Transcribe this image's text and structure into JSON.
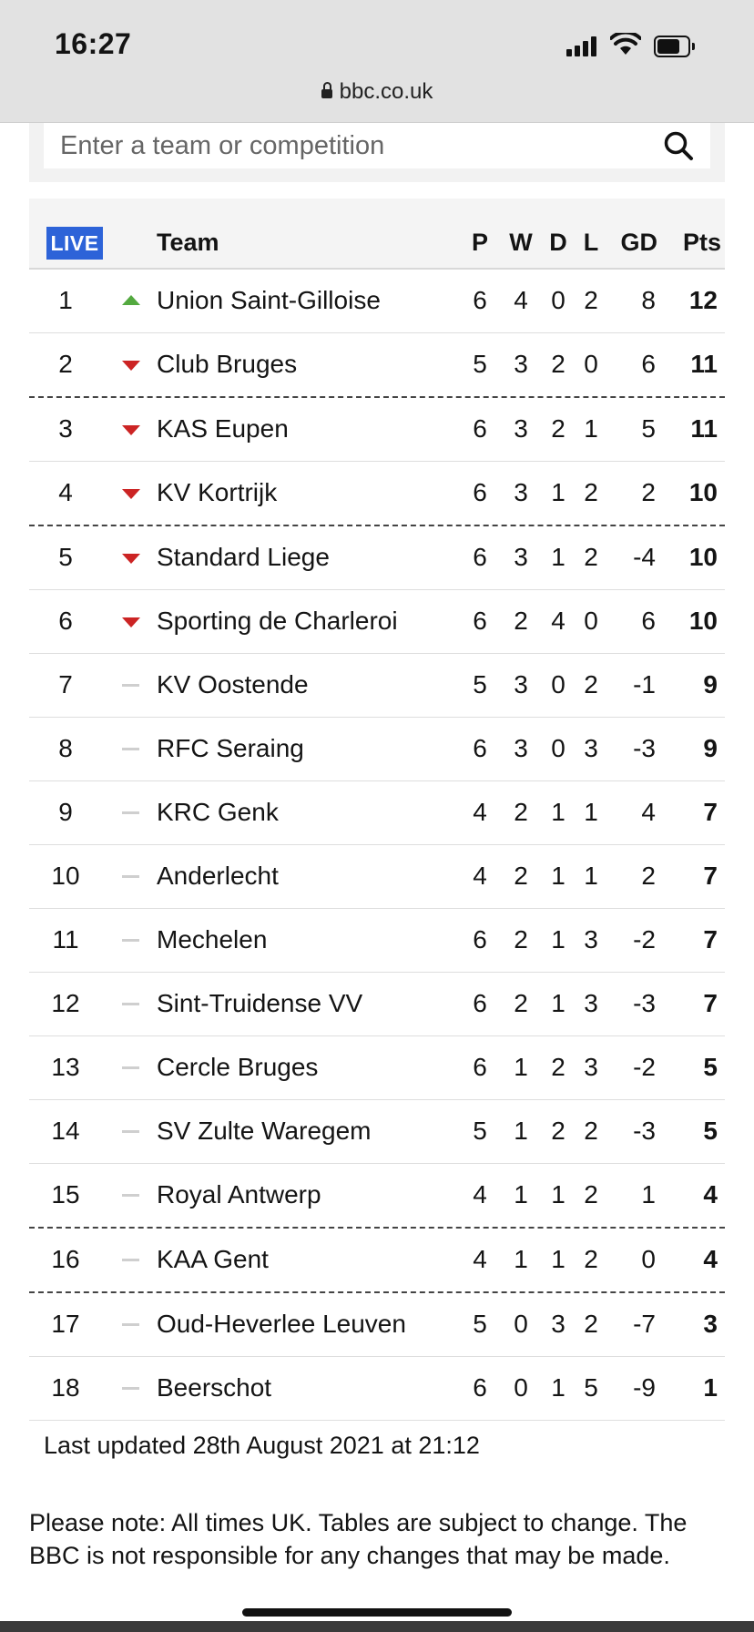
{
  "status_bar": {
    "time": "16:27"
  },
  "browser": {
    "url": "bbc.co.uk"
  },
  "search": {
    "placeholder": "Enter a team or competition"
  },
  "table": {
    "live_label": "LIVE",
    "headers": {
      "team": "Team",
      "p": "P",
      "w": "W",
      "d": "D",
      "l": "L",
      "gd": "GD",
      "pts": "Pts"
    },
    "rows": [
      {
        "pos": "1",
        "move": "up",
        "team": "Union Saint-Gilloise",
        "p": "6",
        "w": "4",
        "d": "0",
        "l": "2",
        "gd": "8",
        "pts": "12",
        "sep": "solid"
      },
      {
        "pos": "2",
        "move": "down",
        "team": "Club Bruges",
        "p": "5",
        "w": "3",
        "d": "2",
        "l": "0",
        "gd": "6",
        "pts": "11",
        "sep": "dashed"
      },
      {
        "pos": "3",
        "move": "down",
        "team": "KAS Eupen",
        "p": "6",
        "w": "3",
        "d": "2",
        "l": "1",
        "gd": "5",
        "pts": "11",
        "sep": "solid"
      },
      {
        "pos": "4",
        "move": "down",
        "team": "KV Kortrijk",
        "p": "6",
        "w": "3",
        "d": "1",
        "l": "2",
        "gd": "2",
        "pts": "10",
        "sep": "dashed"
      },
      {
        "pos": "5",
        "move": "down",
        "team": "Standard Liege",
        "p": "6",
        "w": "3",
        "d": "1",
        "l": "2",
        "gd": "-4",
        "pts": "10",
        "sep": "solid"
      },
      {
        "pos": "6",
        "move": "down",
        "team": "Sporting de Charleroi",
        "p": "6",
        "w": "2",
        "d": "4",
        "l": "0",
        "gd": "6",
        "pts": "10",
        "sep": "solid"
      },
      {
        "pos": "7",
        "move": "same",
        "team": "KV Oostende",
        "p": "5",
        "w": "3",
        "d": "0",
        "l": "2",
        "gd": "-1",
        "pts": "9",
        "sep": "solid"
      },
      {
        "pos": "8",
        "move": "same",
        "team": "RFC Seraing",
        "p": "6",
        "w": "3",
        "d": "0",
        "l": "3",
        "gd": "-3",
        "pts": "9",
        "sep": "solid"
      },
      {
        "pos": "9",
        "move": "same",
        "team": "KRC Genk",
        "p": "4",
        "w": "2",
        "d": "1",
        "l": "1",
        "gd": "4",
        "pts": "7",
        "sep": "solid"
      },
      {
        "pos": "10",
        "move": "same",
        "team": "Anderlecht",
        "p": "4",
        "w": "2",
        "d": "1",
        "l": "1",
        "gd": "2",
        "pts": "7",
        "sep": "solid"
      },
      {
        "pos": "11",
        "move": "same",
        "team": "Mechelen",
        "p": "6",
        "w": "2",
        "d": "1",
        "l": "3",
        "gd": "-2",
        "pts": "7",
        "sep": "solid"
      },
      {
        "pos": "12",
        "move": "same",
        "team": "Sint-Truidense VV",
        "p": "6",
        "w": "2",
        "d": "1",
        "l": "3",
        "gd": "-3",
        "pts": "7",
        "sep": "solid"
      },
      {
        "pos": "13",
        "move": "same",
        "team": "Cercle Bruges",
        "p": "6",
        "w": "1",
        "d": "2",
        "l": "3",
        "gd": "-2",
        "pts": "5",
        "sep": "solid"
      },
      {
        "pos": "14",
        "move": "same",
        "team": "SV Zulte Waregem",
        "p": "5",
        "w": "1",
        "d": "2",
        "l": "2",
        "gd": "-3",
        "pts": "5",
        "sep": "solid"
      },
      {
        "pos": "15",
        "move": "same",
        "team": "Royal Antwerp",
        "p": "4",
        "w": "1",
        "d": "1",
        "l": "2",
        "gd": "1",
        "pts": "4",
        "sep": "dashed"
      },
      {
        "pos": "16",
        "move": "same",
        "team": "KAA Gent",
        "p": "4",
        "w": "1",
        "d": "1",
        "l": "2",
        "gd": "0",
        "pts": "4",
        "sep": "dashed"
      },
      {
        "pos": "17",
        "move": "same",
        "team": "Oud-Heverlee Leuven",
        "p": "5",
        "w": "0",
        "d": "3",
        "l": "2",
        "gd": "-7",
        "pts": "3",
        "sep": "solid"
      },
      {
        "pos": "18",
        "move": "same",
        "team": "Beerschot",
        "p": "6",
        "w": "0",
        "d": "1",
        "l": "5",
        "gd": "-9",
        "pts": "1",
        "sep": "solid"
      }
    ]
  },
  "footer": {
    "last_updated": "Last updated 28th August 2021 at 21:12",
    "note": "Please note: All times UK. Tables are subject to change. The BBC is not responsible for any changes that may be made."
  },
  "colors": {
    "live_badge": "#2d63d8",
    "move_up": "#53a93f",
    "move_down": "#cc2424",
    "move_same": "#cfcfcf"
  },
  "icons": {
    "movement_up": "triangle-up-icon",
    "movement_down": "triangle-down-icon",
    "movement_same": "dash-icon"
  }
}
